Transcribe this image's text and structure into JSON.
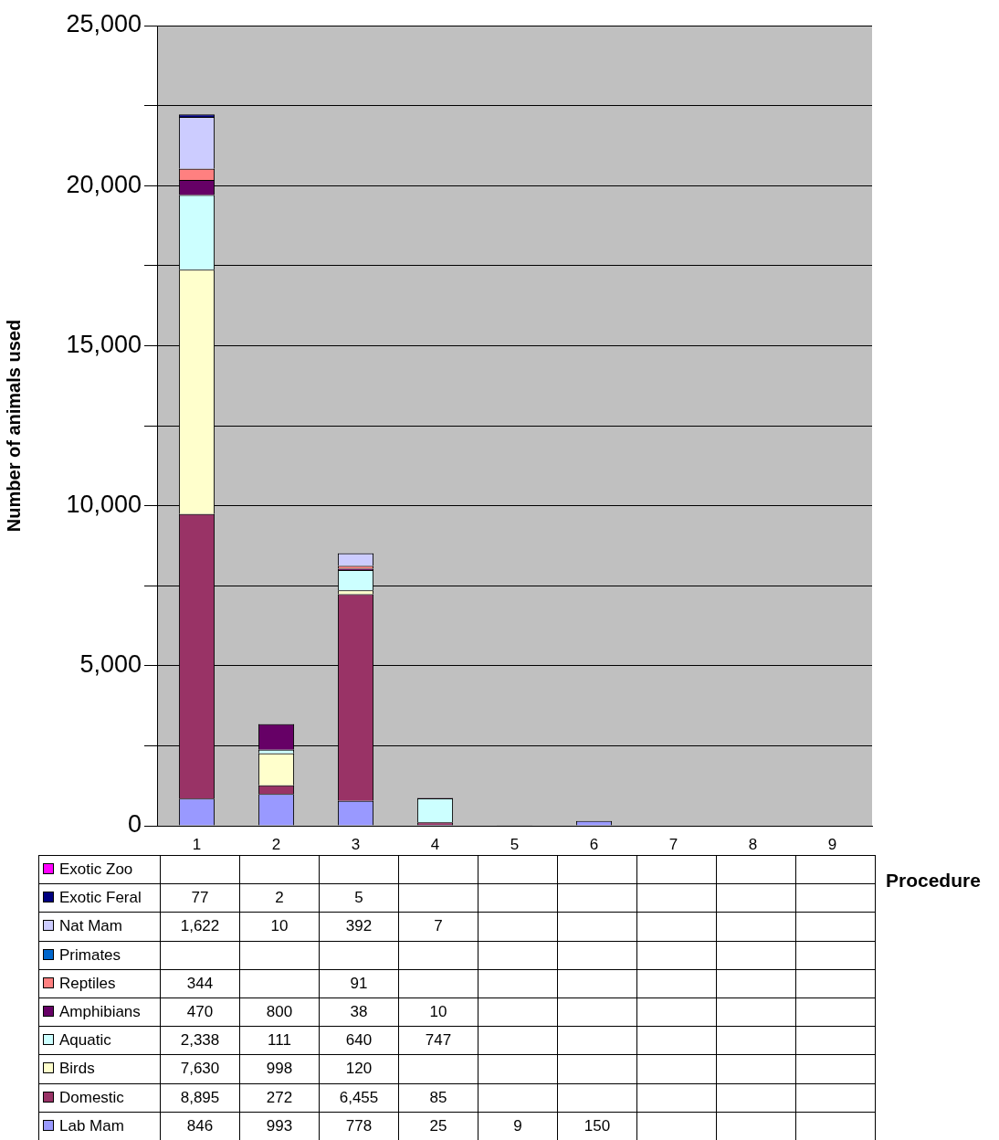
{
  "chart_data": {
    "type": "bar",
    "stacked": true,
    "xlabel": "Procedure",
    "ylabel": "Number of animals used",
    "categories": [
      "1",
      "2",
      "3",
      "4",
      "5",
      "6",
      "7",
      "8",
      "9"
    ],
    "ylim": [
      0,
      25000
    ],
    "yticks": [
      0,
      {
        "value": 2500,
        "label": null
      },
      {
        "value": 5000,
        "label": "5,000"
      },
      {
        "value": 7500,
        "label": null
      },
      {
        "value": 10000,
        "label": "10,000"
      },
      {
        "value": 12500,
        "label": null
      },
      {
        "value": 15000,
        "label": "15,000"
      },
      {
        "value": 17500,
        "label": null
      },
      {
        "value": 20000,
        "label": "20,000"
      },
      {
        "value": 22500,
        "label": null
      },
      {
        "value": 25000,
        "label": "25,000"
      }
    ],
    "grid": "y",
    "legend": "bottom",
    "series": [
      {
        "name": "Lab Mam",
        "color": "#9999ff",
        "values": [
          846,
          993,
          778,
          25,
          9,
          150,
          null,
          null,
          null
        ],
        "value_labels": [
          "846",
          "993",
          "778",
          "25",
          "9",
          "150",
          null,
          null,
          null
        ]
      },
      {
        "name": "Domestic",
        "color": "#993366",
        "values": [
          8895,
          272,
          6455,
          85,
          null,
          null,
          null,
          null,
          null
        ],
        "value_labels": [
          "8,895",
          "272",
          "6,455",
          "85",
          null,
          null,
          null,
          null,
          null
        ]
      },
      {
        "name": "Birds",
        "color": "#ffffcc",
        "values": [
          7630,
          998,
          120,
          null,
          null,
          null,
          null,
          null,
          null
        ],
        "value_labels": [
          "7,630",
          "998",
          "120",
          null,
          null,
          null,
          null,
          null,
          null
        ]
      },
      {
        "name": "Aquatic",
        "color": "#ccffff",
        "values": [
          2338,
          111,
          640,
          747,
          null,
          null,
          null,
          null,
          null
        ],
        "value_labels": [
          "2,338",
          "111",
          "640",
          "747",
          null,
          null,
          null,
          null,
          null
        ]
      },
      {
        "name": "Amphibians",
        "color": "#660066",
        "values": [
          470,
          800,
          38,
          10,
          null,
          null,
          null,
          null,
          null
        ],
        "value_labels": [
          "470",
          "800",
          "38",
          "10",
          null,
          null,
          null,
          null,
          null
        ]
      },
      {
        "name": "Reptiles",
        "color": "#ff8080",
        "values": [
          344,
          null,
          91,
          null,
          null,
          null,
          null,
          null,
          null
        ],
        "value_labels": [
          "344",
          null,
          "91",
          null,
          null,
          null,
          null,
          null,
          null
        ]
      },
      {
        "name": "Primates",
        "color": "#0066cc",
        "values": [
          null,
          null,
          null,
          null,
          null,
          null,
          null,
          null,
          null
        ]
      },
      {
        "name": "Nat Mam",
        "color": "#ccccff",
        "values": [
          1622,
          10,
          392,
          7,
          null,
          null,
          null,
          null,
          null
        ],
        "value_labels": [
          "1,622",
          "10",
          "392",
          "7",
          null,
          null,
          null,
          null,
          null
        ]
      },
      {
        "name": "Exotic Feral",
        "color": "#000080",
        "values": [
          77,
          2,
          5,
          null,
          null,
          null,
          null,
          null,
          null
        ],
        "value_labels": [
          "77",
          "2",
          "5",
          null,
          null,
          null,
          null,
          null,
          null
        ]
      },
      {
        "name": "Exotic Zoo",
        "color": "#ff00ff",
        "values": [
          null,
          null,
          null,
          null,
          null,
          null,
          null,
          null,
          null
        ]
      }
    ]
  }
}
